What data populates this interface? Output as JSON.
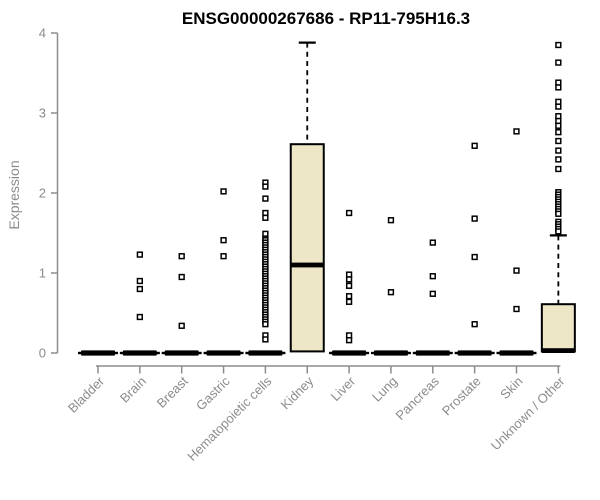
{
  "chart_data": {
    "type": "boxplot",
    "title": "ENSG00000267686 - RP11-795H16.3",
    "xlabel": "",
    "ylabel": "Expression",
    "ylim": [
      0,
      4
    ],
    "yticks": [
      0,
      1,
      2,
      3,
      4
    ],
    "grid": false,
    "legend": "none",
    "colors": {
      "box_fill": "#EDE7C8",
      "box_stroke": "#000000",
      "axis": "#8C8C8C",
      "title": "#000000",
      "background": "#FFFFFF"
    },
    "categories": [
      "Bladder",
      "Brain",
      "Breast",
      "Gastric",
      "Hematopoietic cells",
      "Kidney",
      "Liver",
      "Lung",
      "Pancreas",
      "Prostate",
      "Skin",
      "Unknown / Other"
    ],
    "series": [
      {
        "category": "Bladder",
        "q1": 0,
        "median": 0,
        "q3": 0,
        "whisker_low": 0,
        "whisker_high": 0,
        "outliers": []
      },
      {
        "category": "Brain",
        "q1": 0,
        "median": 0,
        "q3": 0,
        "whisker_low": 0,
        "whisker_high": 0,
        "outliers": [
          1.23,
          0.9,
          0.8,
          0.45
        ]
      },
      {
        "category": "Breast",
        "q1": 0,
        "median": 0,
        "q3": 0,
        "whisker_low": 0,
        "whisker_high": 0,
        "outliers": [
          1.21,
          0.95,
          0.34
        ]
      },
      {
        "category": "Gastric",
        "q1": 0,
        "median": 0,
        "q3": 0,
        "whisker_low": 0,
        "whisker_high": 0,
        "outliers": [
          2.02,
          1.41,
          1.21
        ]
      },
      {
        "category": "Hematopoietic cells",
        "q1": 0,
        "median": 0,
        "q3": 0,
        "whisker_low": 0,
        "whisker_high": 0,
        "outliers": [
          2.13,
          2.08,
          1.93,
          1.75,
          1.69,
          1.49,
          1.43,
          1.41,
          1.38,
          1.35,
          1.32,
          1.29,
          1.26,
          1.23,
          1.2,
          1.17,
          1.14,
          1.11,
          1.08,
          1.05,
          1.02,
          0.99,
          0.96,
          0.93,
          0.9,
          0.87,
          0.84,
          0.81,
          0.78,
          0.75,
          0.72,
          0.69,
          0.66,
          0.63,
          0.6,
          0.57,
          0.54,
          0.51,
          0.48,
          0.45,
          0.42,
          0.39,
          0.36,
          0.22,
          0.17
        ]
      },
      {
        "category": "Kidney",
        "q1": 0.02,
        "median": 1.1,
        "q3": 2.61,
        "whisker_low": 0.02,
        "whisker_high": 3.88,
        "outliers": []
      },
      {
        "category": "Liver",
        "q1": 0,
        "median": 0,
        "q3": 0,
        "whisker_low": 0,
        "whisker_high": 0,
        "outliers": [
          1.75,
          0.98,
          0.92,
          0.84,
          0.71,
          0.64,
          0.22,
          0.16
        ]
      },
      {
        "category": "Lung",
        "q1": 0,
        "median": 0,
        "q3": 0,
        "whisker_low": 0,
        "whisker_high": 0,
        "outliers": [
          1.66,
          0.76
        ]
      },
      {
        "category": "Pancreas",
        "q1": 0,
        "median": 0,
        "q3": 0,
        "whisker_low": 0,
        "whisker_high": 0,
        "outliers": [
          1.38,
          0.96,
          0.74
        ]
      },
      {
        "category": "Prostate",
        "q1": 0,
        "median": 0,
        "q3": 0,
        "whisker_low": 0,
        "whisker_high": 0,
        "outliers": [
          2.59,
          1.68,
          1.2,
          0.36
        ]
      },
      {
        "category": "Skin",
        "q1": 0,
        "median": 0,
        "q3": 0,
        "whisker_low": 0,
        "whisker_high": 0,
        "outliers": [
          2.77,
          1.03,
          0.55
        ]
      },
      {
        "category": "Unknown / Other",
        "q1": 0.02,
        "median": 0.03,
        "q3": 0.61,
        "whisker_low": 0.02,
        "whisker_high": 1.47,
        "outliers": [
          3.85,
          3.63,
          3.38,
          3.32,
          3.14,
          3.08,
          2.96,
          2.9,
          2.84,
          2.76,
          2.65,
          2.53,
          2.42,
          2.3,
          2.01,
          1.98,
          1.95,
          1.92,
          1.89,
          1.86,
          1.83,
          1.8,
          1.77,
          1.74,
          1.64,
          1.61,
          1.58,
          1.55,
          1.52
        ]
      }
    ]
  }
}
